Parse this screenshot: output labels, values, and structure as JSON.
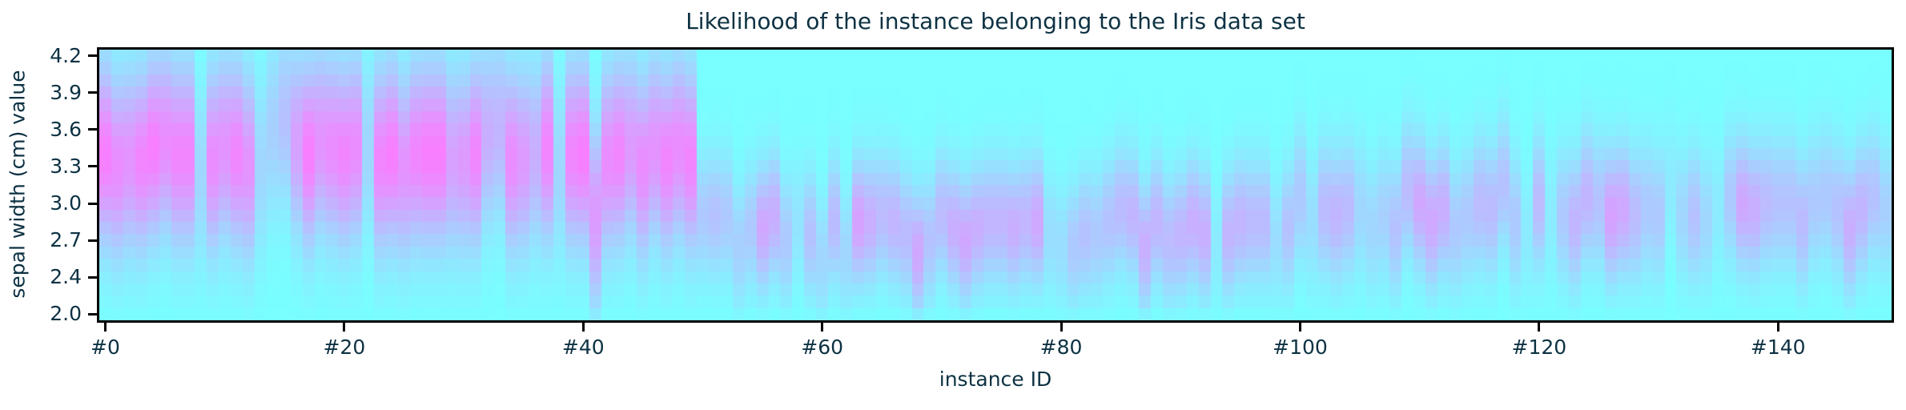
{
  "chart_data": {
    "type": "heatmap",
    "title": "Likelihood of the instance belonging to the Iris data set",
    "xlabel": "instance ID",
    "ylabel": "sepal width (cm) value",
    "n_instances": 150,
    "y_values": [
      4.2,
      4.1,
      4.0,
      3.9,
      3.8,
      3.7,
      3.6,
      3.5,
      3.4,
      3.3,
      3.2,
      3.1,
      3.0,
      2.9,
      2.8,
      2.7,
      2.6,
      2.5,
      2.4,
      2.3,
      2.2,
      2.0
    ],
    "x_tick_labels": [
      "#0",
      "#20",
      "#40",
      "#60",
      "#80",
      "#100",
      "#120",
      "#140"
    ],
    "x_tick_indices": [
      0,
      20,
      40,
      60,
      80,
      100,
      120,
      140
    ],
    "y_tick_labels": [
      "4.2",
      "3.9",
      "3.6",
      "3.3",
      "3.0",
      "2.7",
      "2.4",
      "2.0"
    ],
    "y_tick_rows": [
      0,
      3,
      6,
      9,
      12,
      15,
      18,
      21
    ],
    "grid": false,
    "legend": "none",
    "colormap": {
      "name": "cool, ~50% alpha over white",
      "low": "#78ffff",
      "high": "#ff78ff"
    },
    "colors": {
      "text": "#0d3243",
      "spine": "#000000",
      "tick": "#000000",
      "background": "#ffffff"
    },
    "likelihood_model": {
      "note": "Each instance column i shows likelihood over sepal-width grid: L(v)=peak_likelihood[i]*exp(-0.5*((v-peak_value[i])/spread[i])^2), 0=cyan low, 1=magenta high, as read from the rendered heatmap.",
      "peak_value": [
        3.4,
        3.3,
        3.35,
        3.35,
        3.45,
        3.5,
        3.4,
        3.4,
        3.2,
        3.35,
        3.45,
        3.4,
        3.3,
        3.3,
        3.6,
        3.7,
        3.5,
        3.4,
        3.5,
        3.45,
        3.4,
        3.45,
        3.45,
        3.35,
        3.4,
        3.3,
        3.4,
        3.4,
        3.4,
        3.35,
        3.35,
        3.4,
        3.55,
        3.6,
        3.35,
        3.35,
        3.4,
        3.45,
        3.25,
        3.4,
        3.4,
        2.9,
        3.35,
        3.4,
        3.45,
        3.3,
        3.45,
        3.35,
        3.45,
        3.35,
        2.9,
        2.9,
        2.9,
        2.65,
        2.8,
        2.8,
        2.9,
        2.7,
        2.85,
        2.75,
        2.55,
        2.85,
        2.6,
        2.85,
        2.85,
        2.9,
        2.85,
        2.75,
        2.6,
        2.7,
        2.9,
        2.8,
        2.7,
        2.8,
        2.85,
        2.85,
        2.8,
        2.85,
        2.85,
        2.75,
        2.65,
        2.65,
        2.75,
        2.75,
        2.85,
        2.95,
        2.9,
        2.65,
        2.85,
        2.7,
        2.75,
        2.85,
        2.75,
        2.65,
        2.75,
        2.85,
        2.85,
        2.85,
        2.7,
        2.8,
        3.05,
        2.85,
        2.95,
        2.9,
        2.95,
        2.95,
        2.8,
        2.9,
        2.8,
        3.1,
        3.0,
        2.85,
        2.95,
        2.8,
        2.9,
        3.0,
        2.95,
        3.15,
        2.85,
        2.75,
        3.0,
        2.9,
        2.9,
        2.85,
        3.05,
        3.0,
        2.9,
        2.95,
        2.9,
        2.95,
        2.9,
        3.15,
        2.9,
        2.9,
        2.85,
        2.95,
        3.05,
        3.0,
        2.95,
        3.0,
        3.0,
        3.0,
        2.85,
        3.0,
        3.05,
        2.95,
        2.8,
        2.95,
        3.05,
        2.95
      ],
      "peak_likelihood": [
        0.95,
        0.85,
        0.8,
        0.9,
        0.95,
        0.85,
        0.9,
        0.9,
        0.3,
        0.85,
        0.8,
        0.9,
        0.8,
        0.3,
        0.35,
        0.45,
        0.7,
        0.95,
        0.8,
        0.85,
        0.9,
        0.85,
        0.3,
        0.9,
        0.95,
        0.8,
        0.9,
        0.95,
        0.95,
        0.7,
        0.75,
        0.9,
        0.6,
        0.55,
        0.85,
        0.75,
        0.6,
        0.9,
        0.3,
        0.9,
        0.95,
        0.75,
        0.85,
        0.9,
        0.75,
        0.85,
        0.8,
        0.9,
        0.85,
        0.9,
        0.4,
        0.45,
        0.4,
        0.35,
        0.4,
        0.65,
        0.6,
        0.4,
        0.2,
        0.45,
        0.3,
        0.5,
        0.3,
        0.7,
        0.6,
        0.5,
        0.55,
        0.5,
        0.65,
        0.45,
        0.5,
        0.6,
        0.65,
        0.6,
        0.55,
        0.55,
        0.6,
        0.55,
        0.65,
        0.25,
        0.25,
        0.4,
        0.45,
        0.4,
        0.45,
        0.5,
        0.55,
        0.6,
        0.55,
        0.5,
        0.55,
        0.6,
        0.6,
        0.15,
        0.55,
        0.55,
        0.5,
        0.5,
        0.25,
        0.45,
        0.4,
        0.25,
        0.5,
        0.55,
        0.5,
        0.3,
        0.3,
        0.35,
        0.45,
        0.5,
        0.65,
        0.65,
        0.6,
        0.4,
        0.4,
        0.5,
        0.5,
        0.45,
        0.4,
        0.15,
        0.5,
        0.15,
        0.4,
        0.55,
        0.55,
        0.45,
        0.7,
        0.65,
        0.5,
        0.4,
        0.4,
        0.15,
        0.3,
        0.45,
        0.3,
        0.15,
        0.4,
        0.65,
        0.6,
        0.5,
        0.45,
        0.45,
        0.5,
        0.4,
        0.4,
        0.45,
        0.6,
        0.55,
        0.45,
        0.35
      ],
      "spread": [
        0.5,
        0.5,
        0.5,
        0.5,
        0.5,
        0.5,
        0.5,
        0.5,
        0.5,
        0.5,
        0.5,
        0.5,
        0.5,
        0.5,
        0.5,
        0.5,
        0.5,
        0.5,
        0.5,
        0.5,
        0.5,
        0.5,
        0.5,
        0.5,
        0.5,
        0.5,
        0.5,
        0.5,
        0.5,
        0.5,
        0.5,
        0.5,
        0.5,
        0.5,
        0.5,
        0.5,
        0.5,
        0.5,
        0.5,
        0.5,
        0.5,
        0.5,
        0.5,
        0.5,
        0.5,
        0.5,
        0.5,
        0.5,
        0.5,
        0.5,
        0.34,
        0.34,
        0.34,
        0.34,
        0.34,
        0.34,
        0.34,
        0.34,
        0.34,
        0.34,
        0.34,
        0.34,
        0.34,
        0.34,
        0.34,
        0.34,
        0.34,
        0.34,
        0.34,
        0.34,
        0.34,
        0.34,
        0.34,
        0.34,
        0.34,
        0.34,
        0.34,
        0.34,
        0.34,
        0.34,
        0.34,
        0.34,
        0.34,
        0.34,
        0.34,
        0.34,
        0.34,
        0.34,
        0.34,
        0.34,
        0.34,
        0.34,
        0.34,
        0.34,
        0.34,
        0.34,
        0.34,
        0.34,
        0.34,
        0.34,
        0.36,
        0.36,
        0.36,
        0.36,
        0.36,
        0.36,
        0.36,
        0.36,
        0.36,
        0.36,
        0.36,
        0.36,
        0.36,
        0.36,
        0.36,
        0.36,
        0.36,
        0.36,
        0.36,
        0.36,
        0.36,
        0.36,
        0.36,
        0.36,
        0.36,
        0.36,
        0.36,
        0.36,
        0.36,
        0.36,
        0.36,
        0.36,
        0.36,
        0.36,
        0.36,
        0.36,
        0.36,
        0.36,
        0.36,
        0.36,
        0.36,
        0.36,
        0.36,
        0.36,
        0.36,
        0.36,
        0.36,
        0.36,
        0.36,
        0.36
      ]
    }
  }
}
